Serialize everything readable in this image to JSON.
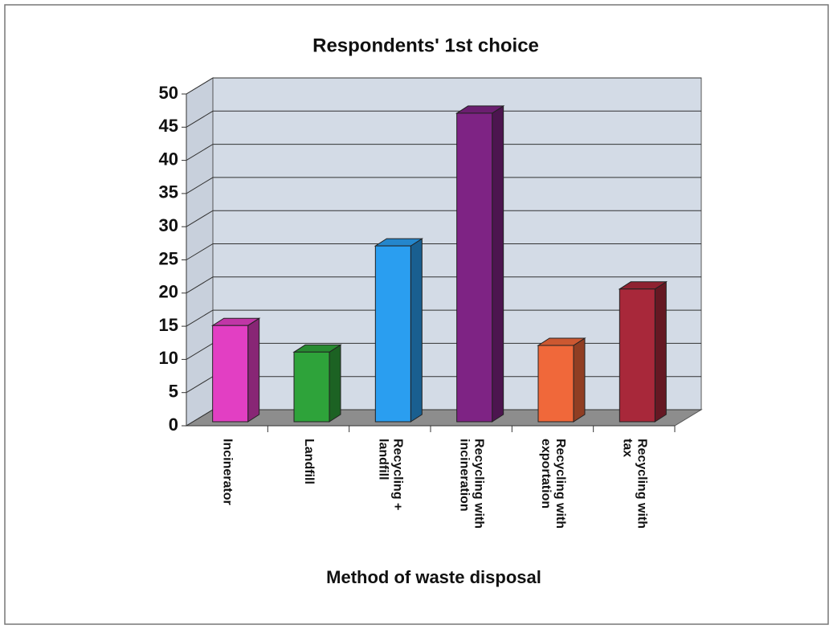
{
  "chart_data": {
    "type": "bar3d",
    "title": "Respondents' 1st choice",
    "x_label": "Method of waste disposal",
    "categories": [
      "Incinerator",
      "Landfill",
      "Recycling + landfill",
      "Recycling with incineration",
      "Recycling with exportation",
      "Recycling with tax"
    ],
    "values": [
      14.5,
      10.5,
      26.5,
      46.5,
      11.5,
      20
    ],
    "colors": [
      "#e23fc3",
      "#2ea33a",
      "#2a9ef0",
      "#7e2384",
      "#f0683a",
      "#a8283a"
    ],
    "ylim": [
      0,
      50
    ],
    "yticks": [
      0,
      5,
      10,
      15,
      20,
      25,
      30,
      35,
      40,
      45,
      50
    ],
    "grid": true
  }
}
